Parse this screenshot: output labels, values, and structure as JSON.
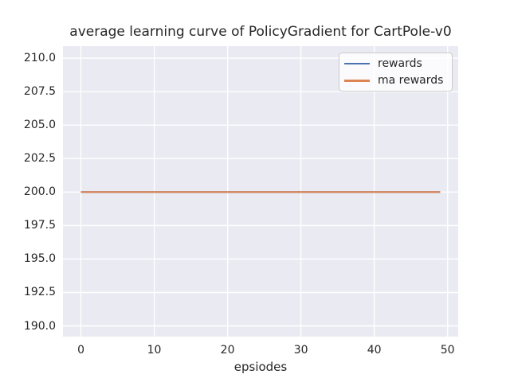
{
  "chart_data": {
    "type": "line",
    "title": "average learning curve of PolicyGradient for CartPole-v0",
    "xlabel": "epsiodes",
    "ylabel": "",
    "x": [
      0,
      1,
      2,
      3,
      4,
      5,
      6,
      7,
      8,
      9,
      10,
      11,
      12,
      13,
      14,
      15,
      16,
      17,
      18,
      19,
      20,
      21,
      22,
      23,
      24,
      25,
      26,
      27,
      28,
      29,
      30,
      31,
      32,
      33,
      34,
      35,
      36,
      37,
      38,
      39,
      40,
      41,
      42,
      43,
      44,
      45,
      46,
      47,
      48,
      49
    ],
    "series": [
      {
        "name": "rewards",
        "color": "#4c72b0",
        "values": [
          200,
          200,
          200,
          200,
          200,
          200,
          200,
          200,
          200,
          200,
          200,
          200,
          200,
          200,
          200,
          200,
          200,
          200,
          200,
          200,
          200,
          200,
          200,
          200,
          200,
          200,
          200,
          200,
          200,
          200,
          200,
          200,
          200,
          200,
          200,
          200,
          200,
          200,
          200,
          200,
          200,
          200,
          200,
          200,
          200,
          200,
          200,
          200,
          200,
          200
        ]
      },
      {
        "name": "ma rewards",
        "color": "#dd8452",
        "values": [
          200,
          200,
          200,
          200,
          200,
          200,
          200,
          200,
          200,
          200,
          200,
          200,
          200,
          200,
          200,
          200,
          200,
          200,
          200,
          200,
          200,
          200,
          200,
          200,
          200,
          200,
          200,
          200,
          200,
          200,
          200,
          200,
          200,
          200,
          200,
          200,
          200,
          200,
          200,
          200,
          200,
          200,
          200,
          200,
          200,
          200,
          200,
          200,
          200,
          200
        ]
      }
    ],
    "xlim": [
      -2.45,
      51.45
    ],
    "ylim": [
      189.2,
      210.9
    ],
    "xticks": [
      0,
      10,
      20,
      30,
      40,
      50
    ],
    "xtick_labels": [
      "0",
      "10",
      "20",
      "30",
      "40",
      "50"
    ],
    "yticks": [
      190,
      192.5,
      195,
      197.5,
      200,
      202.5,
      205,
      207.5,
      210
    ],
    "ytick_labels": [
      "190.0",
      "192.5",
      "195.0",
      "197.5",
      "200.0",
      "202.5",
      "205.0",
      "207.5",
      "210.0"
    ],
    "grid": true,
    "legend_position": "upper right",
    "plot_bg_color": "#eaeaf2",
    "grid_color": "#ffffff",
    "text_color": "#262626",
    "line_width": 2.2
  }
}
